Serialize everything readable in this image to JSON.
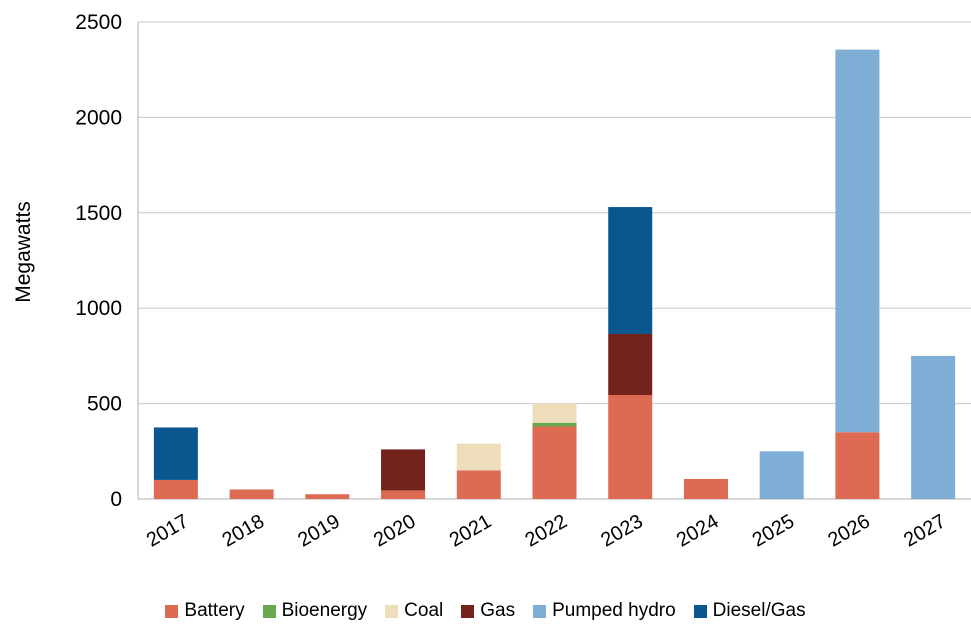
{
  "chart_data": {
    "type": "bar",
    "stacked": true,
    "ylabel": "Megawatts",
    "xlabel": "",
    "ylim": [
      0,
      2500
    ],
    "yticks": [
      0,
      500,
      1000,
      1500,
      2000,
      2500
    ],
    "grid": true,
    "legend_position": "bottom",
    "categories": [
      "2017",
      "2018",
      "2019",
      "2020",
      "2021",
      "2022",
      "2023",
      "2024",
      "2025",
      "2026",
      "2027"
    ],
    "series": [
      {
        "name": "Battery",
        "color": "#dd6a53",
        "values": [
          100,
          50,
          25,
          45,
          150,
          380,
          545,
          105,
          0,
          350,
          0
        ]
      },
      {
        "name": "Bioenergy",
        "color": "#6aa84f",
        "values": [
          0,
          0,
          0,
          0,
          0,
          20,
          0,
          0,
          0,
          0,
          0
        ]
      },
      {
        "name": "Coal",
        "color": "#eeddbb",
        "values": [
          0,
          0,
          0,
          0,
          140,
          100,
          0,
          0,
          0,
          0,
          0
        ]
      },
      {
        "name": "Gas",
        "color": "#73231c",
        "values": [
          0,
          0,
          0,
          215,
          0,
          0,
          320,
          0,
          0,
          0,
          0
        ]
      },
      {
        "name": "Pumped hydro",
        "color": "#7eadd6",
        "values": [
          0,
          0,
          0,
          0,
          0,
          0,
          0,
          0,
          250,
          2005,
          750
        ]
      },
      {
        "name": "Diesel/Gas",
        "color": "#0a568f",
        "values": [
          275,
          0,
          0,
          0,
          0,
          0,
          665,
          0,
          0,
          0,
          0
        ]
      }
    ]
  }
}
